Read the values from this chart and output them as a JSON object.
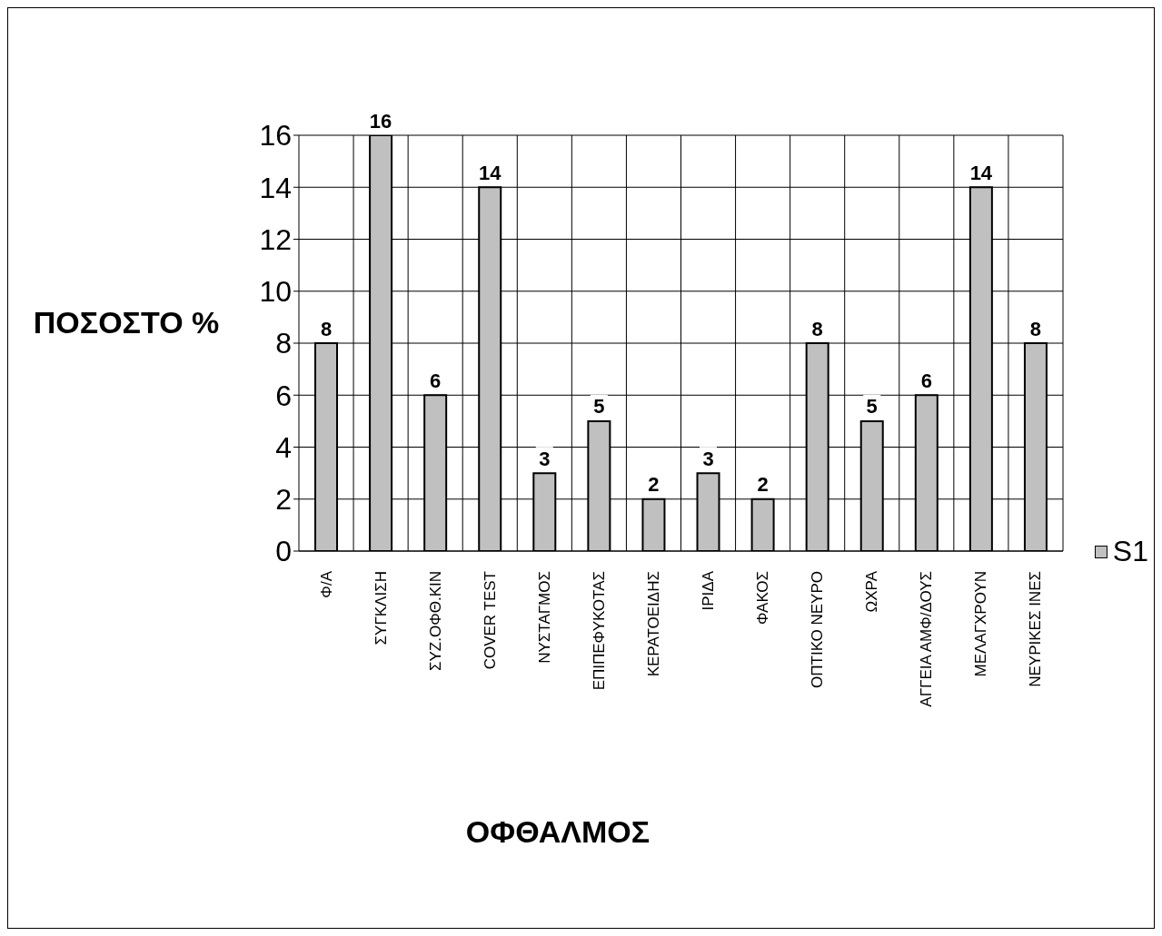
{
  "chart_data": {
    "type": "bar",
    "xlabel": "ΟΦΘΑΛΜΟΣ",
    "ylabel": "ΠΟΣΟΣΤΟ %",
    "categories": [
      "Φ/Α",
      "ΣΥΓΚΛΙΣΗ",
      "ΣΥΖ.ΟΦΘ.ΚΙΝ",
      "COVER TEST",
      "ΝΥΣΤΑΓΜΟΣ",
      "ΕΠΙΠΕΦΥΚΟΤΑΣ",
      "ΚΕΡΑΤΟΕΙΔΗΣ",
      "ΙΡΙΔΑ",
      "ΦΑΚΟΣ",
      "ΟΠΤΙΚΟ ΝΕΥΡΟ",
      "ΩΧΡΑ",
      "ΑΓΓΕΙΑ ΑΜΦ/ΔΟΥΣ",
      "ΜΕΛΑΓΧΡΟΥΝ",
      "ΝΕΥΡΙΚΕΣ ΙΝΕΣ"
    ],
    "series": [
      {
        "name": "S1",
        "color": "#c0c0c0",
        "values": [
          8,
          16,
          6,
          14,
          3,
          5,
          2,
          3,
          2,
          8,
          5,
          6,
          14,
          8
        ]
      }
    ],
    "ylim": [
      0,
      16
    ],
    "yticks": [
      0,
      2,
      4,
      6,
      8,
      10,
      12,
      14,
      16
    ],
    "grid": true,
    "data_labels": true,
    "legend": "right"
  }
}
